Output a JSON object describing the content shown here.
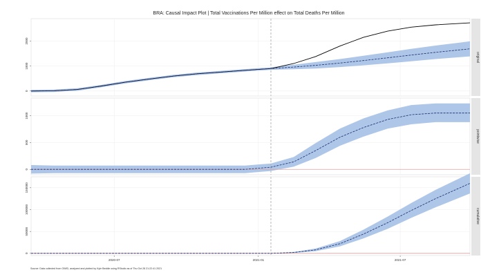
{
  "chart_data": {
    "type": "line",
    "title": "BRA: Causal Impact Plot | Total Vaccinations Per Million effect on Total Deaths Per Million",
    "caption": "Source: Data collected from OWID, analyzed and plotted by Kyle Beddie using RStudio as of Thu Oct 28 21:22:41 2021",
    "x_range": [
      "2020-03-17",
      "2021-09-28"
    ],
    "intervention_date": "2021-01-17",
    "x_ticks": [
      {
        "date": "2020-07-01",
        "label": "2020-07"
      },
      {
        "date": "2021-01-01",
        "label": "2021-01"
      },
      {
        "date": "2021-07-01",
        "label": "2021-07"
      }
    ],
    "colors": {
      "band": "#aec6e8",
      "actual": "#000000",
      "predicted": "#1b2a6b",
      "zero_line": "#d9a0a0",
      "intervention_line": "#b0b0b0",
      "strip": "#e5e5e5"
    },
    "panels": [
      {
        "strip": "original",
        "ylim": [
          -200,
          2900
        ],
        "y_ticks": [
          0,
          1000,
          2000
        ],
        "y_tick_labels": [
          "0",
          "1000",
          "2000"
        ],
        "series": [
          {
            "role": "actual",
            "style": "solid",
            "x": [
              "2020-03-17",
              "2020-04-15",
              "2020-05-15",
              "2020-06-15",
              "2020-07-15",
              "2020-08-15",
              "2020-09-15",
              "2020-10-15",
              "2020-11-15",
              "2020-12-15",
              "2021-01-17",
              "2021-02-15",
              "2021-03-15",
              "2021-04-15",
              "2021-05-15",
              "2021-06-15",
              "2021-07-15",
              "2021-08-15",
              "2021-09-28"
            ],
            "y": [
              0,
              10,
              60,
              200,
              350,
              480,
              600,
              690,
              760,
              830,
              900,
              1100,
              1380,
              1800,
              2150,
              2400,
              2560,
              2650,
              2730
            ]
          },
          {
            "role": "predicted",
            "style": "dashed",
            "x": [
              "2020-03-17",
              "2020-04-15",
              "2020-05-15",
              "2020-06-15",
              "2020-07-15",
              "2020-08-15",
              "2020-09-15",
              "2020-10-15",
              "2020-11-15",
              "2020-12-15",
              "2021-01-17",
              "2021-02-15",
              "2021-03-15",
              "2021-04-15",
              "2021-05-15",
              "2021-06-15",
              "2021-07-15",
              "2021-08-15",
              "2021-09-28"
            ],
            "y": [
              0,
              10,
              60,
              200,
              350,
              480,
              600,
              690,
              760,
              830,
              900,
              960,
              1030,
              1120,
              1220,
              1330,
              1440,
              1550,
              1690
            ],
            "lower": [
              -50,
              -40,
              10,
              150,
              300,
              430,
              550,
              640,
              710,
              780,
              850,
              870,
              900,
              960,
              1030,
              1110,
              1190,
              1280,
              1390
            ],
            "upper": [
              50,
              60,
              110,
              250,
              400,
              530,
              650,
              740,
              810,
              880,
              950,
              1050,
              1160,
              1280,
              1410,
              1550,
              1690,
              1820,
              1990
            ]
          }
        ]
      },
      {
        "strip": "pointwise",
        "ylim": [
          -100,
          1330
        ],
        "y_ticks": [
          0,
          500,
          1000
        ],
        "y_tick_labels": [
          "0",
          "500",
          "1000"
        ],
        "zero_line": true,
        "series": [
          {
            "role": "predicted",
            "style": "dashed",
            "x": [
              "2020-03-17",
              "2020-04-15",
              "2020-05-15",
              "2020-06-15",
              "2020-07-15",
              "2020-08-15",
              "2020-09-15",
              "2020-10-15",
              "2020-11-15",
              "2020-12-15",
              "2021-01-17",
              "2021-02-15",
              "2021-03-15",
              "2021-04-15",
              "2021-05-15",
              "2021-06-15",
              "2021-07-15",
              "2021-08-15",
              "2021-09-28"
            ],
            "y": [
              0,
              0,
              0,
              0,
              0,
              0,
              0,
              0,
              0,
              0,
              40,
              140,
              350,
              600,
              780,
              930,
              1020,
              1050,
              1050
            ],
            "lower": [
              -80,
              -70,
              -70,
              -70,
              -70,
              -70,
              -70,
              -70,
              -70,
              -70,
              -30,
              50,
              210,
              440,
              610,
              760,
              840,
              880,
              880
            ],
            "upper": [
              80,
              70,
              70,
              70,
              70,
              70,
              70,
              70,
              70,
              70,
              110,
              230,
              490,
              760,
              950,
              1100,
              1200,
              1230,
              1230
            ]
          }
        ]
      },
      {
        "strip": "cumulative",
        "ylim": [
          -5000,
          175000
        ],
        "y_ticks": [
          0,
          50000,
          100000,
          150000
        ],
        "y_tick_labels": [
          "0",
          "50000",
          "100000",
          "150000"
        ],
        "zero_line": true,
        "series": [
          {
            "role": "predicted",
            "style": "dashed",
            "x": [
              "2020-03-17",
              "2020-06-15",
              "2020-09-15",
              "2020-12-15",
              "2021-01-17",
              "2021-02-15",
              "2021-03-15",
              "2021-04-15",
              "2021-05-15",
              "2021-06-15",
              "2021-07-15",
              "2021-08-15",
              "2021-09-28"
            ],
            "y": [
              0,
              0,
              0,
              0,
              0,
              2000,
              8000,
              22000,
              44000,
              70000,
              98000,
              125000,
              160000
            ],
            "lower": [
              0,
              0,
              0,
              0,
              0,
              1000,
              5000,
              16000,
              34000,
              56000,
              81000,
              105000,
              137000
            ],
            "upper": [
              0,
              0,
              0,
              0,
              0,
              3000,
              11000,
              28000,
              54000,
              84000,
              115000,
              145000,
              183000
            ]
          }
        ]
      }
    ]
  }
}
